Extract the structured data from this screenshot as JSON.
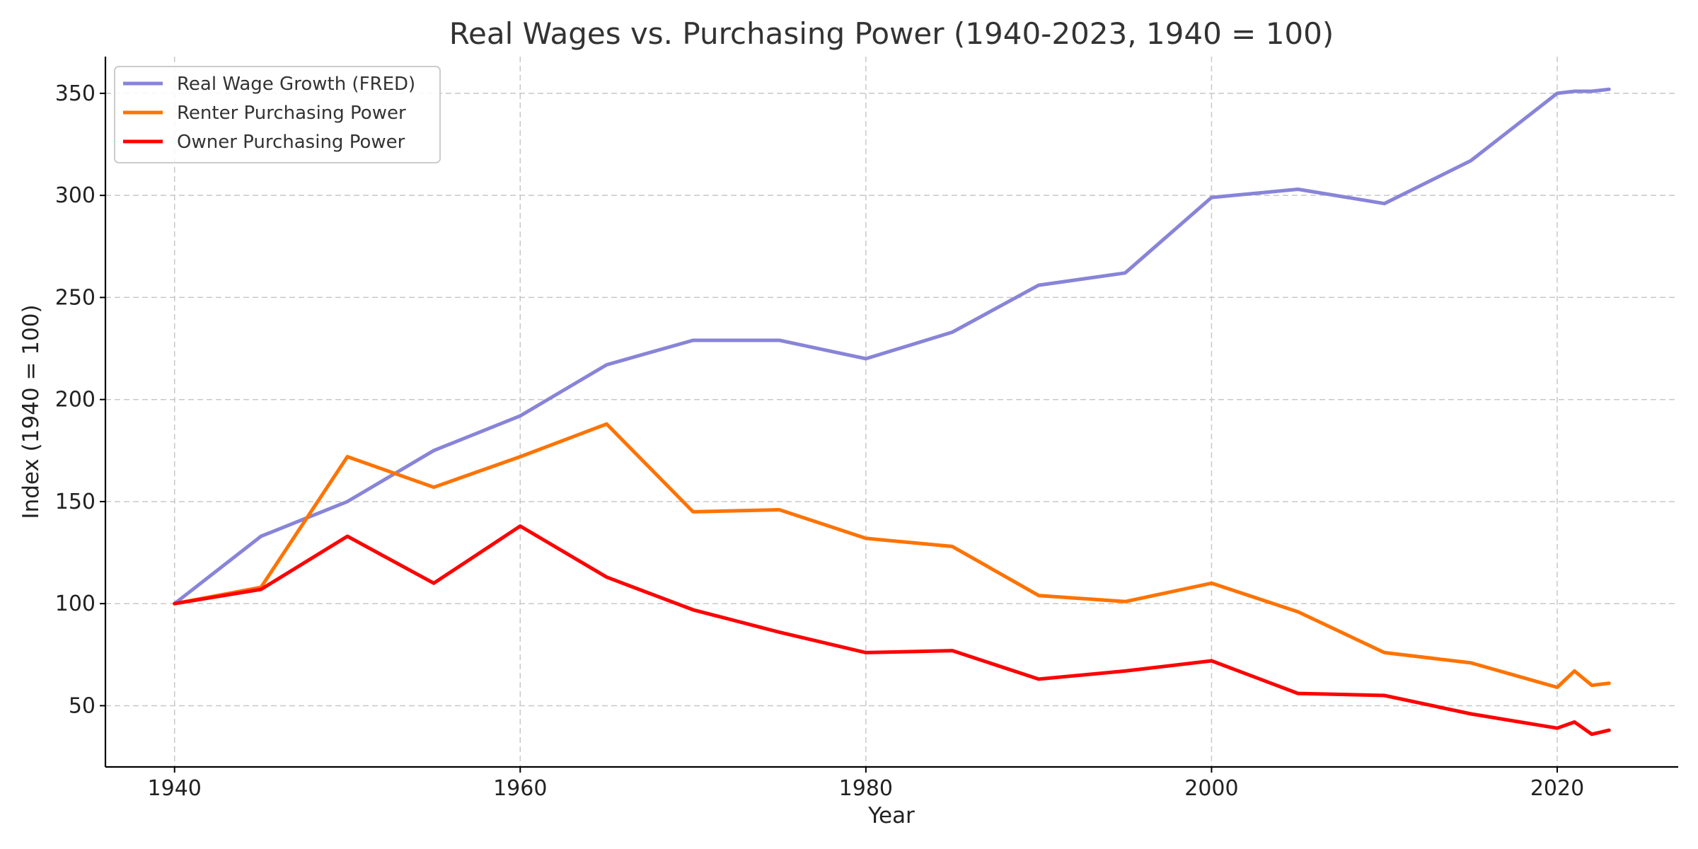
{
  "chart_data": {
    "type": "line",
    "title": "Real Wages vs. Purchasing Power (1940-2023, 1940 = 100)",
    "xlabel": "Year",
    "ylabel": "Index (1940 = 100)",
    "xlim": [
      1936,
      2027
    ],
    "ylim": [
      20,
      368
    ],
    "xticks": [
      1940,
      1960,
      1980,
      2000,
      2020
    ],
    "yticks": [
      50,
      100,
      150,
      200,
      250,
      300,
      350
    ],
    "grid": true,
    "legend_position": "top-left",
    "x": [
      1940,
      1945,
      1950,
      1955,
      1960,
      1965,
      1970,
      1975,
      1980,
      1985,
      1990,
      1995,
      2000,
      2005,
      2010,
      2015,
      2020,
      2021,
      2022,
      2023
    ],
    "series": [
      {
        "name": "Real Wage Growth (FRED)",
        "color": "#8884d8",
        "values": [
          100,
          133,
          150,
          175,
          192,
          217,
          229,
          229,
          220,
          233,
          256,
          262,
          299,
          303,
          296,
          317,
          350,
          351,
          351,
          352
        ]
      },
      {
        "name": "Renter Purchasing Power",
        "color": "#ff7300",
        "values": [
          100,
          108,
          172,
          157,
          172,
          188,
          145,
          146,
          132,
          128,
          104,
          101,
          110,
          96,
          76,
          71,
          59,
          67,
          60,
          61
        ]
      },
      {
        "name": "Owner Purchasing Power",
        "color": "#ff0000",
        "values": [
          100,
          107,
          133,
          110,
          138,
          113,
          97,
          86,
          76,
          77,
          63,
          67,
          72,
          56,
          55,
          46,
          39,
          42,
          36,
          38
        ]
      }
    ]
  }
}
